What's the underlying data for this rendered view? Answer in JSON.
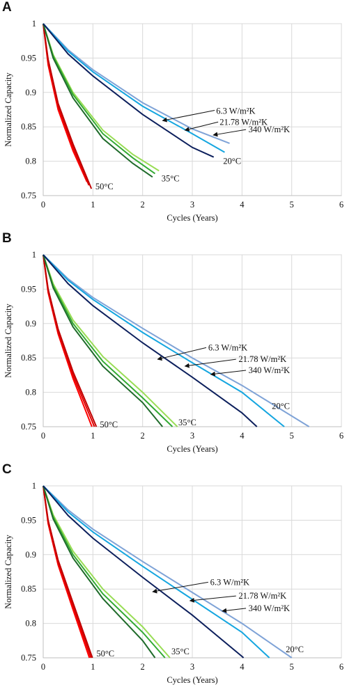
{
  "chart_data": [
    {
      "panel": "A",
      "type": "line",
      "xlabel": "Cycles (Years)",
      "ylabel": "Normalized Capacity",
      "xlim": [
        0,
        6
      ],
      "ylim": [
        0.75,
        1
      ],
      "xticks": [
        "0",
        "1",
        "2",
        "3",
        "4",
        "5",
        "6"
      ],
      "yticks": [
        "0.75",
        "0.8",
        "0.85",
        "0.9",
        "0.95",
        "1"
      ],
      "grid": true,
      "series": [
        {
          "group": "50°C",
          "color": "#ff0000",
          "points": [
            [
              0,
              1
            ],
            [
              0.1,
              0.94
            ],
            [
              0.3,
              0.875
            ],
            [
              0.6,
              0.815
            ],
            [
              0.88,
              0.77
            ]
          ]
        },
        {
          "group": "50°C",
          "color": "#e00000",
          "points": [
            [
              0,
              1
            ],
            [
              0.1,
              0.945
            ],
            [
              0.3,
              0.88
            ],
            [
              0.6,
              0.82
            ],
            [
              0.92,
              0.765
            ]
          ]
        },
        {
          "group": "50°C",
          "color": "#c00000",
          "points": [
            [
              0,
              1
            ],
            [
              0.1,
              0.948
            ],
            [
              0.3,
              0.884
            ],
            [
              0.6,
              0.825
            ],
            [
              0.97,
              0.76
            ]
          ]
        },
        {
          "group": "35°C",
          "color": "#99dd55",
          "points": [
            [
              0,
              1
            ],
            [
              0.2,
              0.955
            ],
            [
              0.6,
              0.9
            ],
            [
              1.2,
              0.845
            ],
            [
              1.8,
              0.81
            ],
            [
              2.33,
              0.786
            ]
          ]
        },
        {
          "group": "35°C",
          "color": "#33aa33",
          "points": [
            [
              0,
              1
            ],
            [
              0.2,
              0.953
            ],
            [
              0.6,
              0.897
            ],
            [
              1.2,
              0.84
            ],
            [
              1.8,
              0.805
            ],
            [
              2.25,
              0.782
            ]
          ]
        },
        {
          "group": "35°C",
          "color": "#1f6b2a",
          "points": [
            [
              0,
              1
            ],
            [
              0.2,
              0.95
            ],
            [
              0.6,
              0.892
            ],
            [
              1.2,
              0.833
            ],
            [
              1.8,
              0.797
            ],
            [
              2.2,
              0.777
            ]
          ]
        },
        {
          "group": "20°C",
          "color": "#7fa3d7",
          "points": [
            [
              0,
              1
            ],
            [
              0.5,
              0.962
            ],
            [
              1,
              0.933
            ],
            [
              2,
              0.885
            ],
            [
              3,
              0.847
            ],
            [
              3.75,
              0.826
            ]
          ]
        },
        {
          "group": "20°C",
          "color": "#15a6e0",
          "points": [
            [
              0,
              1
            ],
            [
              0.5,
              0.96
            ],
            [
              1,
              0.93
            ],
            [
              2,
              0.88
            ],
            [
              3,
              0.84
            ],
            [
              3.65,
              0.813
            ]
          ]
        },
        {
          "group": "20°C",
          "color": "#0c1f5c",
          "points": [
            [
              0,
              1
            ],
            [
              0.5,
              0.956
            ],
            [
              1,
              0.924
            ],
            [
              2,
              0.868
            ],
            [
              3,
              0.82
            ],
            [
              3.43,
              0.806
            ]
          ]
        }
      ],
      "annotations": [
        {
          "text": "6.3 W/m²K",
          "tx": 3.48,
          "ty": 0.873,
          "ax": 2.4,
          "ay": 0.859,
          "arrow_from": [
            3.45,
            0.874
          ]
        },
        {
          "text": "21.78 W/m²K",
          "tx": 3.55,
          "ty": 0.857,
          "ax": 2.85,
          "ay": 0.845,
          "arrow_from": [
            3.52,
            0.857
          ]
        },
        {
          "text": "340 W/m²K",
          "tx": 4.13,
          "ty": 0.846,
          "ax": 3.42,
          "ay": 0.838,
          "arrow_from": [
            4.08,
            0.846
          ]
        },
        {
          "text": "20°C",
          "tx": 3.62,
          "ty": 0.8,
          "ax": null,
          "ay": null
        },
        {
          "text": "35°C",
          "tx": 2.38,
          "ty": 0.775,
          "ax": null,
          "ay": null
        },
        {
          "text": "50°C",
          "tx": 1.05,
          "ty": 0.763,
          "ax": null,
          "ay": null
        }
      ]
    },
    {
      "panel": "B",
      "type": "line",
      "xlabel": "Cycles (Years)",
      "ylabel": "Normalized Capacity",
      "xlim": [
        0,
        6
      ],
      "ylim": [
        0.75,
        1
      ],
      "xticks": [
        "0",
        "1",
        "2",
        "3",
        "4",
        "5",
        "6"
      ],
      "yticks": [
        "0.75",
        "0.8",
        "0.85",
        "0.9",
        "0.95",
        "1"
      ],
      "grid": true,
      "series": [
        {
          "group": "50°C",
          "color": "#ff0000",
          "points": [
            [
              0,
              1
            ],
            [
              0.1,
              0.945
            ],
            [
              0.3,
              0.885
            ],
            [
              0.6,
              0.82
            ],
            [
              0.98,
              0.75
            ]
          ]
        },
        {
          "group": "50°C",
          "color": "#e00000",
          "points": [
            [
              0,
              1
            ],
            [
              0.1,
              0.948
            ],
            [
              0.3,
              0.888
            ],
            [
              0.6,
              0.825
            ],
            [
              1.03,
              0.75
            ]
          ]
        },
        {
          "group": "50°C",
          "color": "#c00000",
          "points": [
            [
              0,
              1
            ],
            [
              0.1,
              0.95
            ],
            [
              0.3,
              0.892
            ],
            [
              0.6,
              0.83
            ],
            [
              1.07,
              0.75
            ]
          ]
        },
        {
          "group": "35°C",
          "color": "#99dd55",
          "points": [
            [
              0,
              1
            ],
            [
              0.2,
              0.958
            ],
            [
              0.6,
              0.905
            ],
            [
              1.2,
              0.852
            ],
            [
              2,
              0.8
            ],
            [
              2.7,
              0.75
            ]
          ]
        },
        {
          "group": "35°C",
          "color": "#33aa33",
          "points": [
            [
              0,
              1
            ],
            [
              0.2,
              0.955
            ],
            [
              0.6,
              0.9
            ],
            [
              1.2,
              0.845
            ],
            [
              2,
              0.792
            ],
            [
              2.6,
              0.75
            ]
          ]
        },
        {
          "group": "35°C",
          "color": "#1f6b2a",
          "points": [
            [
              0,
              1
            ],
            [
              0.2,
              0.952
            ],
            [
              0.6,
              0.895
            ],
            [
              1.2,
              0.838
            ],
            [
              2,
              0.785
            ],
            [
              2.4,
              0.75
            ]
          ]
        },
        {
          "group": "20°C",
          "color": "#7fa3d7",
          "points": [
            [
              0,
              1
            ],
            [
              0.5,
              0.965
            ],
            [
              1,
              0.938
            ],
            [
              2,
              0.893
            ],
            [
              3,
              0.85
            ],
            [
              4,
              0.81
            ],
            [
              5.35,
              0.75
            ]
          ]
        },
        {
          "group": "20°C",
          "color": "#15a6e0",
          "points": [
            [
              0,
              1
            ],
            [
              0.5,
              0.963
            ],
            [
              1,
              0.935
            ],
            [
              2,
              0.887
            ],
            [
              3,
              0.843
            ],
            [
              4,
              0.8
            ],
            [
              4.85,
              0.75
            ]
          ]
        },
        {
          "group": "20°C",
          "color": "#0c1f5c",
          "points": [
            [
              0,
              1
            ],
            [
              0.5,
              0.958
            ],
            [
              1,
              0.926
            ],
            [
              2,
              0.872
            ],
            [
              3,
              0.822
            ],
            [
              4,
              0.77
            ],
            [
              4.3,
              0.75
            ]
          ]
        }
      ],
      "annotations": [
        {
          "text": "6.3 W/m²K",
          "tx": 3.32,
          "ty": 0.865,
          "ax": 2.3,
          "ay": 0.848,
          "arrow_from": [
            3.28,
            0.865
          ]
        },
        {
          "text": "21.78 W/m²K",
          "tx": 3.93,
          "ty": 0.848,
          "ax": 2.85,
          "ay": 0.838,
          "arrow_from": [
            3.88,
            0.848
          ]
        },
        {
          "text": "340 W/m²K",
          "tx": 4.13,
          "ty": 0.832,
          "ax": 3.37,
          "ay": 0.826,
          "arrow_from": [
            4.08,
            0.832
          ]
        },
        {
          "text": "20°C",
          "tx": 4.6,
          "ty": 0.78,
          "ax": null,
          "ay": null
        },
        {
          "text": "35°C",
          "tx": 2.72,
          "ty": 0.756,
          "ax": null,
          "ay": null
        },
        {
          "text": "50°C",
          "tx": 1.14,
          "ty": 0.753,
          "ax": null,
          "ay": null
        }
      ]
    },
    {
      "panel": "C",
      "type": "line",
      "xlabel": "Cycles (Years)",
      "ylabel": "Normalized Capacity",
      "xlim": [
        0,
        6
      ],
      "ylim": [
        0.75,
        1
      ],
      "xticks": [
        "0",
        "1",
        "2",
        "3",
        "4",
        "5",
        "6"
      ],
      "yticks": [
        "0.75",
        "0.8",
        "0.85",
        "0.9",
        "0.95",
        "1"
      ],
      "grid": true,
      "series": [
        {
          "group": "50°C",
          "color": "#ff0000",
          "points": [
            [
              0,
              1
            ],
            [
              0.1,
              0.945
            ],
            [
              0.3,
              0.885
            ],
            [
              0.6,
              0.82
            ],
            [
              0.93,
              0.75
            ]
          ]
        },
        {
          "group": "50°C",
          "color": "#e00000",
          "points": [
            [
              0,
              1
            ],
            [
              0.1,
              0.948
            ],
            [
              0.3,
              0.888
            ],
            [
              0.6,
              0.825
            ],
            [
              0.96,
              0.75
            ]
          ]
        },
        {
          "group": "50°C",
          "color": "#c00000",
          "points": [
            [
              0,
              1
            ],
            [
              0.1,
              0.95
            ],
            [
              0.3,
              0.892
            ],
            [
              0.6,
              0.83
            ],
            [
              0.99,
              0.75
            ]
          ]
        },
        {
          "group": "35°C",
          "color": "#99dd55",
          "points": [
            [
              0,
              1
            ],
            [
              0.2,
              0.958
            ],
            [
              0.6,
              0.905
            ],
            [
              1.2,
              0.85
            ],
            [
              2,
              0.795
            ],
            [
              2.55,
              0.75
            ]
          ]
        },
        {
          "group": "35°C",
          "color": "#33aa33",
          "points": [
            [
              0,
              1
            ],
            [
              0.2,
              0.955
            ],
            [
              0.6,
              0.9
            ],
            [
              1.2,
              0.843
            ],
            [
              2,
              0.787
            ],
            [
              2.45,
              0.75
            ]
          ]
        },
        {
          "group": "35°C",
          "color": "#1f6b2a",
          "points": [
            [
              0,
              1
            ],
            [
              0.2,
              0.952
            ],
            [
              0.6,
              0.895
            ],
            [
              1.2,
              0.836
            ],
            [
              2,
              0.775
            ],
            [
              2.25,
              0.75
            ]
          ]
        },
        {
          "group": "20°C",
          "color": "#7fa3d7",
          "points": [
            [
              0,
              1
            ],
            [
              0.5,
              0.965
            ],
            [
              1,
              0.937
            ],
            [
              2,
              0.89
            ],
            [
              3,
              0.845
            ],
            [
              4,
              0.8
            ],
            [
              5,
              0.75
            ]
          ]
        },
        {
          "group": "20°C",
          "color": "#15a6e0",
          "points": [
            [
              0,
              1
            ],
            [
              0.5,
              0.962
            ],
            [
              1,
              0.933
            ],
            [
              2,
              0.883
            ],
            [
              3,
              0.835
            ],
            [
              4,
              0.787
            ],
            [
              4.55,
              0.75
            ]
          ]
        },
        {
          "group": "20°C",
          "color": "#0c1f5c",
          "points": [
            [
              0,
              1
            ],
            [
              0.5,
              0.957
            ],
            [
              1,
              0.924
            ],
            [
              2,
              0.867
            ],
            [
              3,
              0.812
            ],
            [
              4,
              0.752
            ],
            [
              4.03,
              0.75
            ]
          ]
        }
      ],
      "annotations": [
        {
          "text": "6.3 W/m²K",
          "tx": 3.36,
          "ty": 0.86,
          "ax": 2.2,
          "ay": 0.846,
          "arrow_from": [
            3.32,
            0.86
          ]
        },
        {
          "text": "21.78 W/m²K",
          "tx": 3.93,
          "ty": 0.84,
          "ax": 2.95,
          "ay": 0.833,
          "arrow_from": [
            3.88,
            0.84
          ]
        },
        {
          "text": "340 W/m²K",
          "tx": 4.13,
          "ty": 0.822,
          "ax": 3.6,
          "ay": 0.818,
          "arrow_from": [
            4.08,
            0.822
          ]
        },
        {
          "text": "20°C",
          "tx": 4.88,
          "ty": 0.762,
          "ax": null,
          "ay": null
        },
        {
          "text": "35°C",
          "tx": 2.58,
          "ty": 0.759,
          "ax": null,
          "ay": null
        },
        {
          "text": "50°C",
          "tx": 1.07,
          "ty": 0.756,
          "ax": null,
          "ay": null
        }
      ]
    }
  ]
}
